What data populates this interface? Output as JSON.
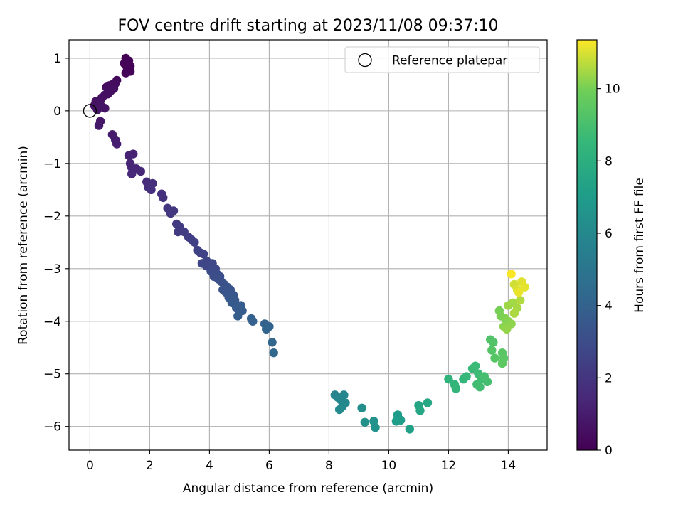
{
  "chart_data": {
    "type": "scatter",
    "title": "FOV centre drift starting at 2023/11/08 09:37:10",
    "xlabel": "Angular distance from reference (arcmin)",
    "ylabel": "Rotation from reference (arcmin)",
    "xlim": [
      -0.7,
      15.3
    ],
    "ylim": [
      -6.45,
      1.35
    ],
    "x_ticks": [
      0,
      2,
      4,
      6,
      8,
      10,
      12,
      14
    ],
    "y_ticks": [
      1,
      0,
      -1,
      -2,
      -3,
      -4,
      -5,
      -6
    ],
    "grid": true,
    "legend": {
      "placement": "top-right",
      "entries": [
        "Reference platepar"
      ]
    },
    "colorbar": {
      "label": "Hours from first FF file",
      "range": [
        0,
        11.35
      ],
      "ticks": [
        0,
        2,
        4,
        6,
        8,
        10
      ],
      "colormap": "viridis"
    },
    "reference_point": {
      "x": 0,
      "y": 0
    },
    "series": [
      {
        "points": [
          [
            1.2,
            1.0,
            0.05
          ],
          [
            1.3,
            0.95,
            0.08
          ],
          [
            1.15,
            0.9,
            0.1
          ],
          [
            1.35,
            0.85,
            0.12
          ],
          [
            1.25,
            0.8,
            0.14
          ],
          [
            1.35,
            0.75,
            0.16
          ],
          [
            1.2,
            0.72,
            0.2
          ],
          [
            0.9,
            0.58,
            0.3
          ],
          [
            0.85,
            0.52,
            0.35
          ],
          [
            0.75,
            0.5,
            0.38
          ],
          [
            0.65,
            0.48,
            0.4
          ],
          [
            0.55,
            0.45,
            0.42
          ],
          [
            0.8,
            0.42,
            0.45
          ],
          [
            0.7,
            0.38,
            0.48
          ],
          [
            0.6,
            0.32,
            0.5
          ],
          [
            0.5,
            0.3,
            0.52
          ],
          [
            0.4,
            0.25,
            0.55
          ],
          [
            0.35,
            0.2,
            0.58
          ],
          [
            0.2,
            0.18,
            0.6
          ],
          [
            0.3,
            0.12,
            0.62
          ],
          [
            0.15,
            0.1,
            0.65
          ],
          [
            0.4,
            0.08,
            0.68
          ],
          [
            0.5,
            0.05,
            0.7
          ],
          [
            0.25,
            0.02,
            0.72
          ],
          [
            0.35,
            -0.2,
            0.8
          ],
          [
            0.3,
            -0.28,
            0.85
          ],
          [
            0.75,
            -0.45,
            0.95
          ],
          [
            0.85,
            -0.55,
            1.0
          ],
          [
            0.9,
            -0.63,
            1.05
          ],
          [
            1.3,
            -0.85,
            1.2
          ],
          [
            1.45,
            -0.82,
            1.25
          ],
          [
            1.35,
            -1.0,
            1.3
          ],
          [
            1.4,
            -1.08,
            1.35
          ],
          [
            1.55,
            -1.1,
            1.4
          ],
          [
            1.7,
            -1.15,
            1.45
          ],
          [
            1.4,
            -1.2,
            1.42
          ],
          [
            1.9,
            -1.35,
            1.6
          ],
          [
            2.0,
            -1.4,
            1.65
          ],
          [
            1.95,
            -1.45,
            1.7
          ],
          [
            2.05,
            -1.5,
            1.72
          ],
          [
            2.1,
            -1.38,
            1.75
          ],
          [
            2.4,
            -1.58,
            1.8
          ],
          [
            2.45,
            -1.65,
            1.85
          ],
          [
            2.6,
            -1.85,
            2.0
          ],
          [
            2.8,
            -1.9,
            2.05
          ],
          [
            2.7,
            -1.95,
            2.1
          ],
          [
            2.9,
            -2.15,
            2.15
          ],
          [
            3.0,
            -2.2,
            2.2
          ],
          [
            2.95,
            -2.3,
            2.25
          ],
          [
            3.15,
            -2.3,
            2.3
          ],
          [
            3.3,
            -2.4,
            2.35
          ],
          [
            3.4,
            -2.45,
            2.4
          ],
          [
            3.5,
            -2.5,
            2.45
          ],
          [
            3.6,
            -2.65,
            2.5
          ],
          [
            3.7,
            -2.7,
            2.55
          ],
          [
            3.8,
            -2.72,
            2.6
          ],
          [
            3.9,
            -2.85,
            2.65
          ],
          [
            3.75,
            -2.9,
            2.7
          ],
          [
            3.9,
            -2.95,
            2.75
          ],
          [
            4.1,
            -2.9,
            2.8
          ],
          [
            4.2,
            -3.0,
            2.85
          ],
          [
            4.05,
            -3.05,
            2.9
          ],
          [
            4.25,
            -3.1,
            2.95
          ],
          [
            4.15,
            -3.15,
            3.0
          ],
          [
            4.35,
            -3.15,
            3.05
          ],
          [
            4.3,
            -3.2,
            3.1
          ],
          [
            4.4,
            -3.25,
            3.15
          ],
          [
            4.5,
            -3.3,
            3.2
          ],
          [
            4.6,
            -3.35,
            3.25
          ],
          [
            4.45,
            -3.4,
            3.3
          ],
          [
            4.7,
            -3.4,
            3.35
          ],
          [
            4.55,
            -3.45,
            3.4
          ],
          [
            4.8,
            -3.5,
            3.45
          ],
          [
            4.65,
            -3.55,
            3.5
          ],
          [
            4.85,
            -3.6,
            3.55
          ],
          [
            4.75,
            -3.65,
            3.6
          ],
          [
            4.9,
            -3.75,
            3.65
          ],
          [
            5.05,
            -3.7,
            3.7
          ],
          [
            5.1,
            -3.8,
            3.75
          ],
          [
            4.95,
            -3.9,
            3.8
          ],
          [
            5.4,
            -3.95,
            3.9
          ],
          [
            5.45,
            -4.0,
            3.95
          ],
          [
            5.85,
            -4.05,
            4.0
          ],
          [
            6.0,
            -4.1,
            4.05
          ],
          [
            5.9,
            -4.15,
            4.1
          ],
          [
            6.1,
            -4.4,
            4.2
          ],
          [
            6.15,
            -4.6,
            4.3
          ],
          [
            8.2,
            -5.4,
            5.8
          ],
          [
            8.3,
            -5.45,
            5.85
          ],
          [
            8.5,
            -5.4,
            5.9
          ],
          [
            8.4,
            -5.5,
            5.95
          ],
          [
            8.55,
            -5.55,
            6.0
          ],
          [
            8.45,
            -5.62,
            6.05
          ],
          [
            8.35,
            -5.68,
            6.1
          ],
          [
            9.1,
            -5.65,
            6.3
          ],
          [
            9.2,
            -5.92,
            6.4
          ],
          [
            9.5,
            -5.9,
            6.5
          ],
          [
            9.55,
            -6.02,
            6.55
          ],
          [
            10.3,
            -5.78,
            7.0
          ],
          [
            10.4,
            -5.88,
            7.05
          ],
          [
            10.25,
            -5.9,
            7.1
          ],
          [
            10.7,
            -6.05,
            7.2
          ],
          [
            11.0,
            -5.6,
            7.5
          ],
          [
            11.05,
            -5.7,
            7.55
          ],
          [
            11.3,
            -5.55,
            7.6
          ],
          [
            12.0,
            -5.1,
            8.3
          ],
          [
            12.2,
            -5.2,
            8.35
          ],
          [
            12.25,
            -5.28,
            8.4
          ],
          [
            12.5,
            -5.1,
            8.45
          ],
          [
            12.6,
            -5.05,
            8.5
          ],
          [
            12.8,
            -4.9,
            8.6
          ],
          [
            12.9,
            -4.85,
            8.65
          ],
          [
            13.0,
            -5.0,
            8.7
          ],
          [
            13.1,
            -5.1,
            8.75
          ],
          [
            12.95,
            -5.2,
            8.8
          ],
          [
            13.05,
            -5.25,
            8.85
          ],
          [
            13.3,
            -5.15,
            8.9
          ],
          [
            13.2,
            -5.05,
            8.95
          ],
          [
            13.4,
            -4.35,
            9.2
          ],
          [
            13.5,
            -4.4,
            9.25
          ],
          [
            13.45,
            -4.55,
            9.3
          ],
          [
            13.55,
            -4.7,
            9.35
          ],
          [
            13.8,
            -4.6,
            9.4
          ],
          [
            13.85,
            -4.7,
            9.45
          ],
          [
            13.8,
            -4.8,
            9.5
          ],
          [
            13.7,
            -3.8,
            10.0
          ],
          [
            13.75,
            -3.9,
            10.05
          ],
          [
            13.9,
            -3.95,
            10.1
          ],
          [
            14.0,
            -4.0,
            10.15
          ],
          [
            13.85,
            -4.1,
            10.2
          ],
          [
            14.1,
            -4.05,
            10.25
          ],
          [
            13.95,
            -4.15,
            10.3
          ],
          [
            14.0,
            -3.7,
            10.4
          ],
          [
            14.15,
            -3.65,
            10.45
          ],
          [
            14.3,
            -3.75,
            10.5
          ],
          [
            14.2,
            -3.85,
            10.55
          ],
          [
            14.4,
            -3.6,
            10.6
          ],
          [
            14.2,
            -3.3,
            10.9
          ],
          [
            14.3,
            -3.4,
            11.0
          ],
          [
            14.45,
            -3.25,
            11.05
          ],
          [
            14.55,
            -3.35,
            11.1
          ],
          [
            14.35,
            -3.45,
            11.15
          ],
          [
            14.1,
            -3.1,
            11.3
          ]
        ]
      }
    ]
  }
}
